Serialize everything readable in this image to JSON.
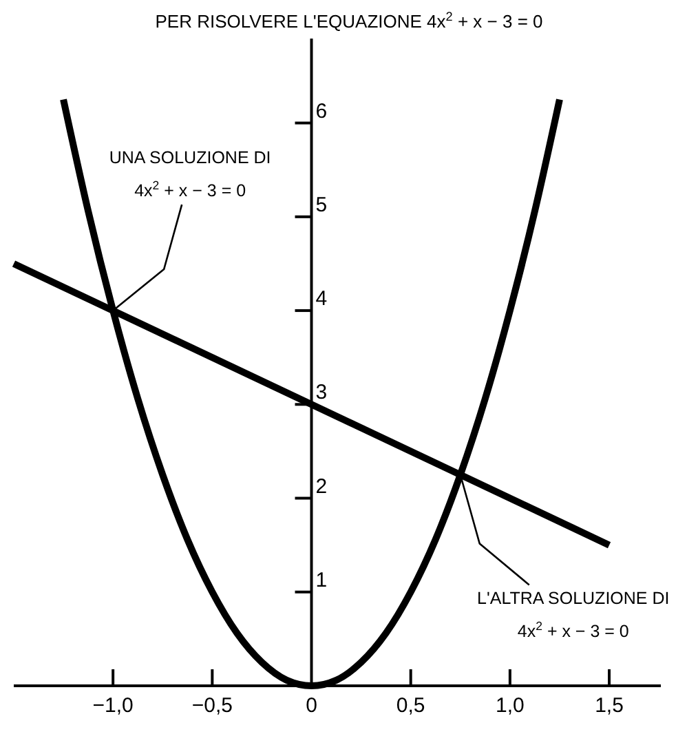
{
  "chart_data": {
    "type": "line",
    "title": "PER RISOLVERE L'EQUAZIONE 4x$^{2}$ + x − 3 = 0",
    "series": [
      {
        "color": "#000000",
        "x": [
          -1.25,
          -1.125,
          -1,
          -0.875,
          -0.75,
          -0.625,
          -0.5,
          -0.375,
          -0.25,
          -0.125,
          0,
          0.125,
          0.25,
          0.375,
          0.5,
          0.625,
          0.75,
          0.875,
          1,
          1.125,
          1.25
        ],
        "values": [
          6.25,
          5.06,
          4,
          3.06,
          2.25,
          1.56,
          1,
          0.56,
          0.25,
          0.06,
          0,
          0.06,
          0.25,
          0.56,
          1,
          1.56,
          2.25,
          3.06,
          4,
          5.06,
          6.25
        ]
      },
      {
        "color": "#000000",
        "x": [
          -1.5,
          1.5
        ],
        "values": [
          4.5,
          1.5
        ]
      }
    ],
    "xlim": [
      -1.5,
      1.76
    ],
    "ylim": [
      0,
      6.9
    ],
    "xticks": [
      {
        "value": -1,
        "label": "−1,0"
      },
      {
        "value": -0.5,
        "label": "−0,5"
      },
      0,
      {
        "value": 0.5,
        "label": "0,5"
      },
      {
        "value": 1,
        "label": "1,0"
      },
      {
        "value": 1.5,
        "label": "1,5"
      }
    ],
    "yticks": [
      1,
      2,
      3,
      4,
      5,
      6
    ],
    "annotations": [
      {
        "text": "UNA SOLUZIONE DI\n4x$^{2}$ + x − 3 = 0",
        "x": -1,
        "y": 4
      },
      {
        "text": "L'ALTRA SOLUZIONE DI\n4x$^{2}$ + x − 3 = 0",
        "x": 0.75,
        "y": 2.25
      }
    ],
    "grid": false,
    "marker": "none",
    "line_style": "solid"
  }
}
